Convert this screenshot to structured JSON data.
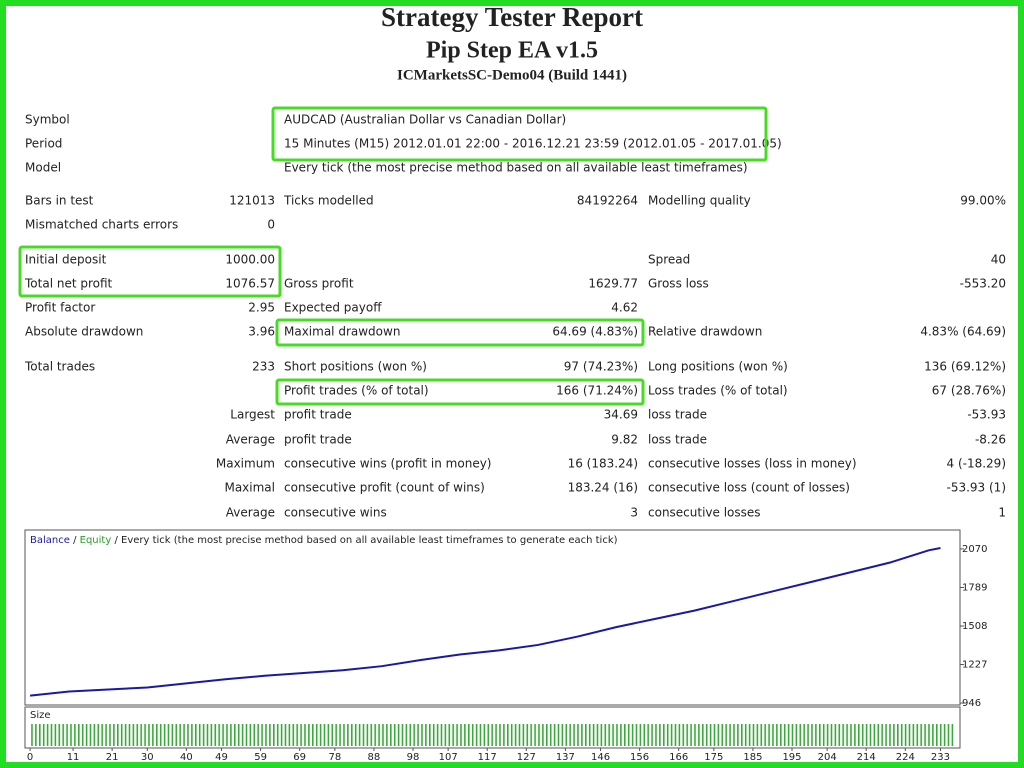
{
  "header": {
    "title": "Strategy Tester Report",
    "subtitle": "Pip Step EA v1.5",
    "build": "ICMarketsSC-Demo04 (Build 1441)"
  },
  "table": {
    "rows": [
      [
        "Symbol",
        null,
        "AUDCAD (Australian Dollar vs Canadian Dollar)",
        null,
        null,
        null
      ],
      [
        "Period",
        null,
        "15 Minutes (M15) 2012.01.01 22:00 - 2016.12.21 23:59 (2012.01.05 - 2017.01.05)",
        null,
        null,
        null
      ],
      [
        "Model",
        null,
        "Every tick (the most precise method based on all available least timeframes)",
        null,
        null,
        null
      ],
      [
        "Bars in test",
        "121013",
        "Ticks modelled",
        "84192264",
        "Modelling quality",
        "99.00%"
      ],
      [
        "Mismatched charts errors",
        "0",
        null,
        null,
        null,
        null
      ],
      [
        "Initial deposit",
        "1000.00",
        null,
        null,
        "Spread",
        "40"
      ],
      [
        "Total net profit",
        "1076.57",
        "Gross profit",
        "1629.77",
        "Gross loss",
        "-553.20"
      ],
      [
        "Profit factor",
        "2.95",
        "Expected payoff",
        "4.62",
        null,
        null
      ],
      [
        "Absolute drawdown",
        "3.96",
        "Maximal drawdown",
        "64.69 (4.83%)",
        "Relative drawdown",
        "4.83% (64.69)"
      ],
      [
        "Total trades",
        "233",
        "Short positions (won %)",
        "97 (74.23%)",
        "Long positions (won %)",
        "136 (69.12%)"
      ],
      [
        null,
        null,
        "Profit trades (% of total)",
        "166 (71.24%)",
        "Loss trades (% of total)",
        "67 (28.76%)"
      ],
      [
        null,
        "Largest",
        "profit trade",
        "34.69",
        "loss trade",
        "-53.93"
      ],
      [
        null,
        "Average",
        "profit trade",
        "9.82",
        "loss trade",
        "-8.26"
      ],
      [
        null,
        "Maximum",
        "consecutive wins (profit in money)",
        "16 (183.24)",
        "consecutive losses (loss in money)",
        "4 (-18.29)"
      ],
      [
        null,
        "Maximal",
        "consecutive profit (count of wins)",
        "183.24 (16)",
        "consecutive loss (count of losses)",
        "-53.93 (1)"
      ],
      [
        null,
        "Average",
        "consecutive wins",
        "3",
        "consecutive losses",
        "1"
      ]
    ]
  },
  "chart_data": {
    "type": "line",
    "separator": "/",
    "note": "Every tick (the most precise method based on all available least timeframes to generate each tick)",
    "extra_legend": {
      "name": "Equity",
      "color": "#2a9d2a"
    },
    "size_label": "Size",
    "x": [
      0,
      10,
      20,
      30,
      40,
      50,
      60,
      70,
      80,
      90,
      100,
      110,
      120,
      130,
      140,
      150,
      160,
      170,
      180,
      190,
      200,
      210,
      220,
      230,
      233
    ],
    "series": [
      {
        "name": "Balance",
        "color": "#1a1aa0",
        "values": [
          1000,
          1030,
          1045,
          1060,
          1090,
          1120,
          1145,
          1165,
          1185,
          1215,
          1260,
          1300,
          1330,
          1370,
          1430,
          1500,
          1560,
          1620,
          1690,
          1760,
          1830,
          1900,
          1970,
          2060,
          2076.57
        ]
      }
    ],
    "xlim": [
      -1.3,
      238
    ],
    "ylim": [
      932,
      2208
    ],
    "xticks": [
      0,
      11,
      21,
      30,
      40,
      49,
      59,
      69,
      78,
      88,
      98,
      107,
      117,
      127,
      137,
      146,
      156,
      166,
      175,
      185,
      195,
      204,
      214,
      224,
      233
    ],
    "yticks": [
      2070,
      1789,
      1508,
      1227,
      946
    ]
  }
}
